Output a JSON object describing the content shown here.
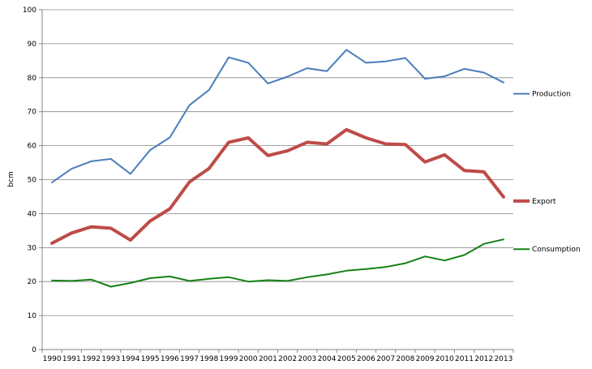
{
  "chart_data": {
    "type": "line",
    "title": "",
    "xlabel": "",
    "ylabel": "bcm",
    "ylim": [
      0,
      100
    ],
    "ytick_step": 10,
    "grid": true,
    "legend_placement": "right",
    "x": [
      "1990",
      "1991",
      "1992",
      "1993",
      "1994",
      "1995",
      "1996",
      "1997",
      "1998",
      "1999",
      "2000",
      "2001",
      "2002",
      "2003",
      "2004",
      "2005",
      "2006",
      "2007",
      "2008",
      "2009",
      "2010",
      "2011",
      "2012",
      "2013"
    ],
    "series": [
      {
        "name": "Production",
        "color": "#4a7ebb",
        "width": 2,
        "values": [
          49.2,
          53.2,
          55.4,
          56.1,
          51.7,
          58.7,
          62.4,
          71.9,
          76.4,
          86.0,
          84.4,
          78.3,
          80.3,
          82.8,
          81.9,
          88.2,
          84.4,
          84.8,
          85.8,
          79.7,
          80.4,
          82.6,
          81.5,
          78.6
        ]
      },
      {
        "name": "Export",
        "color": "#be4b48",
        "width": 4,
        "values": [
          31.3,
          34.3,
          36.1,
          35.7,
          32.2,
          37.8,
          41.4,
          49.3,
          53.3,
          61.0,
          62.3,
          57.1,
          58.5,
          61.0,
          60.5,
          64.7,
          62.3,
          60.5,
          60.3,
          55.2,
          57.3,
          52.7,
          52.3,
          44.9
        ]
      },
      {
        "name": "Consumption",
        "color": "#168016",
        "width": 2,
        "values": [
          20.3,
          20.2,
          20.6,
          18.5,
          19.6,
          21.0,
          21.5,
          20.2,
          20.8,
          21.3,
          20.0,
          20.4,
          20.2,
          21.3,
          22.1,
          23.2,
          23.7,
          24.3,
          25.4,
          27.4,
          26.2,
          27.8,
          31.1,
          32.4
        ]
      }
    ]
  }
}
